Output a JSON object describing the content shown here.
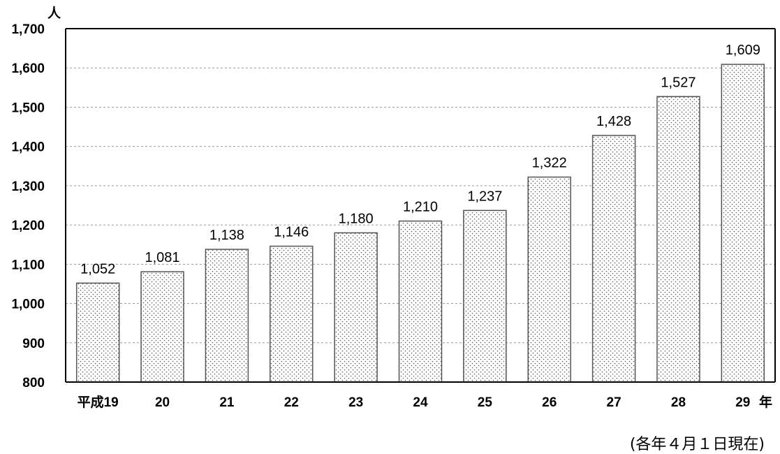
{
  "chart_data": {
    "type": "bar",
    "categories": [
      "平成19",
      "20",
      "21",
      "22",
      "23",
      "24",
      "25",
      "26",
      "27",
      "28",
      "29"
    ],
    "values": [
      1052,
      1081,
      1138,
      1146,
      1180,
      1210,
      1237,
      1322,
      1428,
      1527,
      1609
    ],
    "value_labels": [
      "1,052",
      "1,081",
      "1,138",
      "1,146",
      "1,180",
      "1,210",
      "1,237",
      "1,322",
      "1,428",
      "1,527",
      "1,609"
    ],
    "ylim": [
      800,
      1700
    ],
    "yticks": [
      800,
      900,
      1000,
      1100,
      1200,
      1300,
      1400,
      1500,
      1600,
      1700
    ],
    "ytick_labels": [
      "800",
      "900",
      "1,000",
      "1,100",
      "1,200",
      "1,300",
      "1,400",
      "1,500",
      "1,600",
      "1,700"
    ],
    "ylabel": "人",
    "xlabel": "年",
    "grid": "dashed horizontal",
    "bar_fill": "dotted pattern",
    "bar_color": "#ffffff",
    "dot_color": "#444444"
  },
  "note": "(各年４月１日現在)"
}
